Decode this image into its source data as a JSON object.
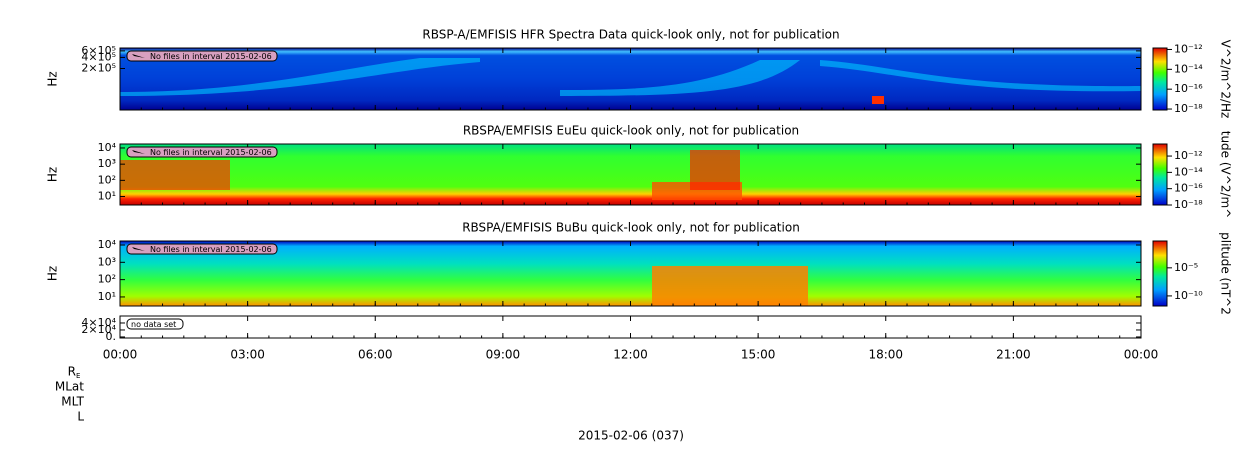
{
  "chart_data": [
    {
      "type": "spectrogram",
      "title": "RBSP-A/EMFISIS  HFR Spectra Data quick-look only, not for publication",
      "ylabel": "Hz",
      "ylog": true,
      "ylim": [
        15000,
        720000
      ],
      "yticks": [
        {
          "value": 200000,
          "label": "2×10⁵"
        },
        {
          "value": 400000,
          "label": "4×10⁵"
        },
        {
          "value": 600000,
          "label": "6×10⁵"
        }
      ],
      "colorbar": {
        "label": "V^2/m^2/Hz",
        "log": true,
        "lim": [
          8e-19,
          1.4e-12
        ],
        "ticks": [
          {
            "value": 1e-18,
            "label": "10⁻¹⁸"
          },
          {
            "value": 1e-16,
            "label": "10⁻¹⁶"
          },
          {
            "value": 1e-14,
            "label": "10⁻¹⁴"
          },
          {
            "value": 1e-12,
            "label": "10⁻¹²"
          }
        ]
      },
      "note": "No files in interval 2015-02-06"
    },
    {
      "type": "spectrogram",
      "title": "RBSPA/EMFISIS  EuEu quick-look only, not for publication",
      "ylabel": "Hz",
      "ylog": true,
      "ylim": [
        3,
        17600
      ],
      "yticks": [
        {
          "value": 10,
          "label": "10¹"
        },
        {
          "value": 100,
          "label": "10²"
        },
        {
          "value": 1000,
          "label": "10³"
        },
        {
          "value": 10000,
          "label": "10⁴"
        }
      ],
      "colorbar": {
        "label": "tude (V^2/m^",
        "log": true,
        "lim": [
          1e-18,
          3e-11
        ],
        "ticks": [
          {
            "value": 1e-18,
            "label": "10⁻¹⁸"
          },
          {
            "value": 1e-16,
            "label": "10⁻¹⁶"
          },
          {
            "value": 1e-14,
            "label": "10⁻¹⁴"
          },
          {
            "value": 1e-12,
            "label": "10⁻¹²"
          }
        ]
      },
      "note": "No files in interval 2015-02-06"
    },
    {
      "type": "spectrogram",
      "title": "RBSPA/EMFISIS  BuBu quick-look only, not for publication",
      "ylabel": "Hz",
      "ylog": true,
      "ylim": [
        3,
        17000
      ],
      "yticks": [
        {
          "value": 10,
          "label": "10¹"
        },
        {
          "value": 100,
          "label": "10²"
        },
        {
          "value": 1000,
          "label": "10³"
        },
        {
          "value": 10000,
          "label": "10⁴"
        }
      ],
      "colorbar": {
        "label": "plitude (nT^2",
        "log": true,
        "lim": [
          1.6e-12,
          0.6
        ],
        "ticks": [
          {
            "value": 1e-10,
            "label": "10⁻¹⁰"
          },
          {
            "value": 1e-05,
            "label": "10⁻⁵"
          }
        ]
      },
      "note": "No files in interval 2015-02-06"
    },
    {
      "type": "empty",
      "ylog": false,
      "ylim": [
        -3000,
        60000
      ],
      "yticks": [
        {
          "value": 0,
          "label": "0."
        },
        {
          "value": 20000,
          "label": "2×10⁴"
        },
        {
          "value": 40000,
          "label": "4×10⁴"
        }
      ],
      "note": "no data set"
    }
  ],
  "x_axis": {
    "xlim": [
      0,
      24
    ],
    "xticks": [
      {
        "value": 0,
        "label": "00:00"
      },
      {
        "value": 3,
        "label": "03:00"
      },
      {
        "value": 6,
        "label": "06:00"
      },
      {
        "value": 9,
        "label": "09:00"
      },
      {
        "value": 12,
        "label": "12:00"
      },
      {
        "value": 15,
        "label": "15:00"
      },
      {
        "value": 18,
        "label": "18:00"
      },
      {
        "value": 21,
        "label": "21:00"
      },
      {
        "value": 24,
        "label": "00:00"
      }
    ]
  },
  "ephemeris_labels": [
    {
      "text": "R",
      "subscript": "E"
    },
    {
      "text": "MLat"
    },
    {
      "text": "MLT"
    },
    {
      "text": "L"
    }
  ],
  "date_label": "2015-02-06 (037)"
}
